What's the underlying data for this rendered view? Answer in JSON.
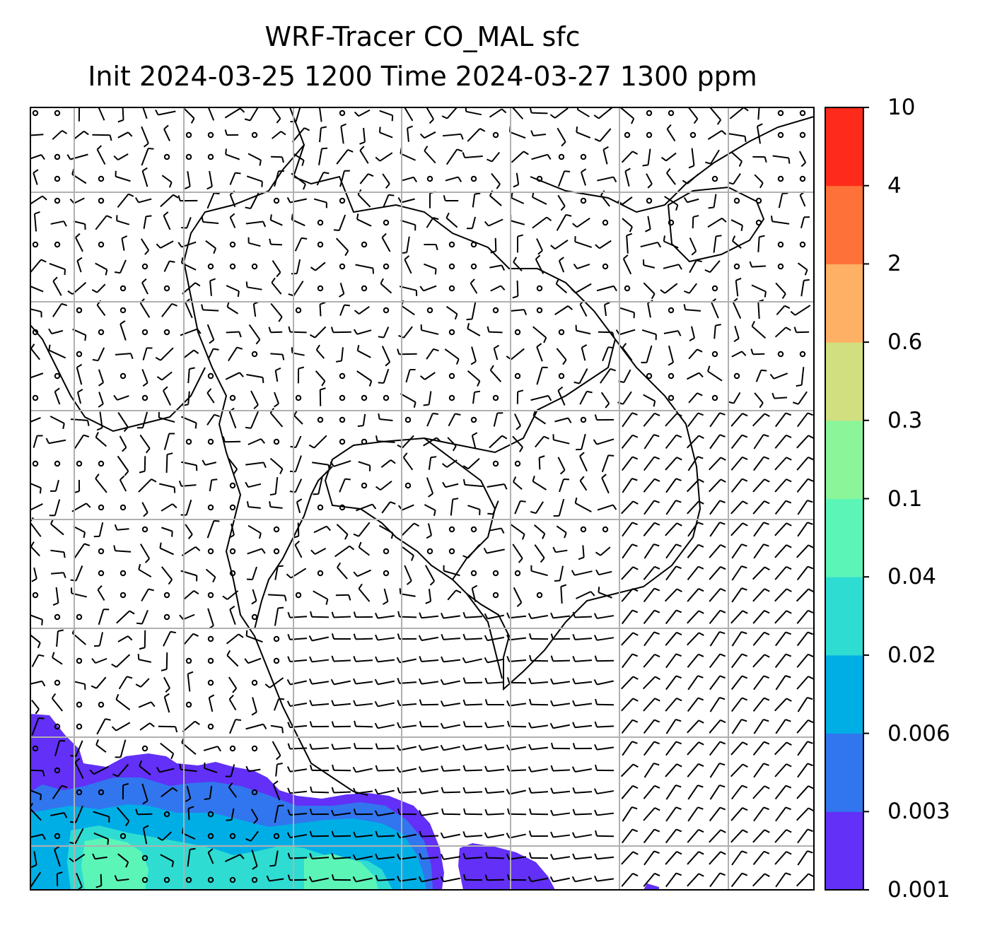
{
  "title": {
    "line1": "WRF-Tracer CO_MAL sfc",
    "line2": "Init 2024-03-25 1200 Time 2024-03-27 1300 ppm"
  },
  "colorbar": {
    "levels": [
      "0.001",
      "0.003",
      "0.006",
      "0.02",
      "0.04",
      "0.1",
      "0.3",
      "0.6",
      "2",
      "4",
      "10"
    ],
    "colors": [
      "#6230f7",
      "#3176ee",
      "#00aee6",
      "#2fdcd2",
      "#5cf5b8",
      "#8bf59a",
      "#d1df80",
      "#feb064",
      "#fe7138",
      "#fe2a1b"
    ]
  },
  "map": {
    "grid": "on",
    "coastlines": "on",
    "wind_barbs": "on",
    "colors": {
      "grid": "#b0b0b0",
      "coast": "#000000",
      "barb": "#000000"
    }
  }
}
